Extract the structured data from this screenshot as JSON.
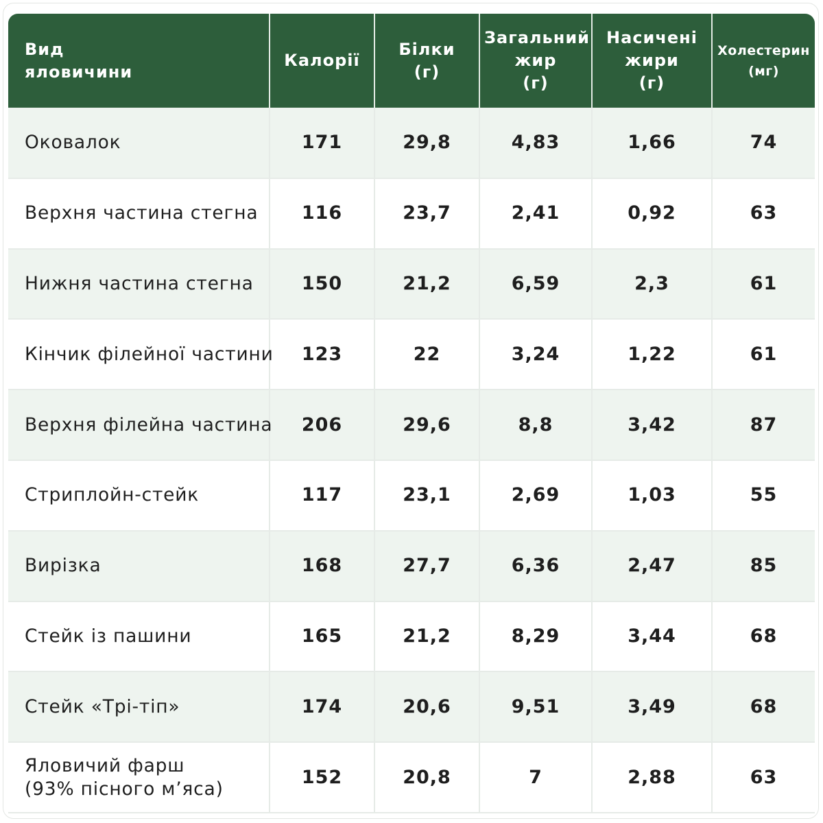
{
  "table": {
    "headers": [
      {
        "line1": "Вид",
        "line2": "яловичини",
        "line3": ""
      },
      {
        "line1": "Калорії",
        "line2": "",
        "line3": ""
      },
      {
        "line1": "Білки",
        "line2": "(г)",
        "line3": ""
      },
      {
        "line1": "Загальний",
        "line2": "жир",
        "line3": "(г)"
      },
      {
        "line1": "Насичені",
        "line2": "жири",
        "line3": "(г)"
      },
      {
        "line1": "Холестерин",
        "line2": "(мг)",
        "line3": ""
      }
    ],
    "rows": [
      {
        "name": "Оковалок",
        "sub": "",
        "calories": "171",
        "protein": "29,8",
        "total_fat": "4,83",
        "saturated_fat": "1,66",
        "cholesterol": "74"
      },
      {
        "name": "Верхня частина стегна",
        "sub": "",
        "calories": "116",
        "protein": "23,7",
        "total_fat": "2,41",
        "saturated_fat": "0,92",
        "cholesterol": "63"
      },
      {
        "name": "Нижня частина стегна",
        "sub": "",
        "calories": "150",
        "protein": "21,2",
        "total_fat": "6,59",
        "saturated_fat": "2,3",
        "cholesterol": "61"
      },
      {
        "name": "Кінчик філейної частини",
        "sub": "",
        "calories": "123",
        "protein": "22",
        "total_fat": "3,24",
        "saturated_fat": "1,22",
        "cholesterol": "61"
      },
      {
        "name": "Верхня філейна частина",
        "sub": "",
        "calories": "206",
        "protein": "29,6",
        "total_fat": "8,8",
        "saturated_fat": "3,42",
        "cholesterol": "87"
      },
      {
        "name": "Стриплойн-стейк",
        "sub": "",
        "calories": "117",
        "protein": "23,1",
        "total_fat": "2,69",
        "saturated_fat": "1,03",
        "cholesterol": "55"
      },
      {
        "name": "Вирізка",
        "sub": "",
        "calories": "168",
        "protein": "27,7",
        "total_fat": "6,36",
        "saturated_fat": "2,47",
        "cholesterol": "85"
      },
      {
        "name": "Стейк із пашини",
        "sub": "",
        "calories": "165",
        "protein": "21,2",
        "total_fat": "8,29",
        "saturated_fat": "3,44",
        "cholesterol": "68"
      },
      {
        "name": "Стейк «Трі-тіп»",
        "sub": "",
        "calories": "174",
        "protein": "20,6",
        "total_fat": "9,51",
        "saturated_fat": "3,49",
        "cholesterol": "68"
      },
      {
        "name": "Яловичий фарш",
        "sub": "(93% пісного м’яса)",
        "calories": "152",
        "protein": "20,8",
        "total_fat": "7",
        "saturated_fat": "2,88",
        "cholesterol": "63"
      }
    ]
  },
  "colors": {
    "header_bg": "#2d5e3b",
    "header_text": "#ffffff",
    "row_alt_bg": "#eef4ef",
    "row_bg": "#ffffff"
  }
}
